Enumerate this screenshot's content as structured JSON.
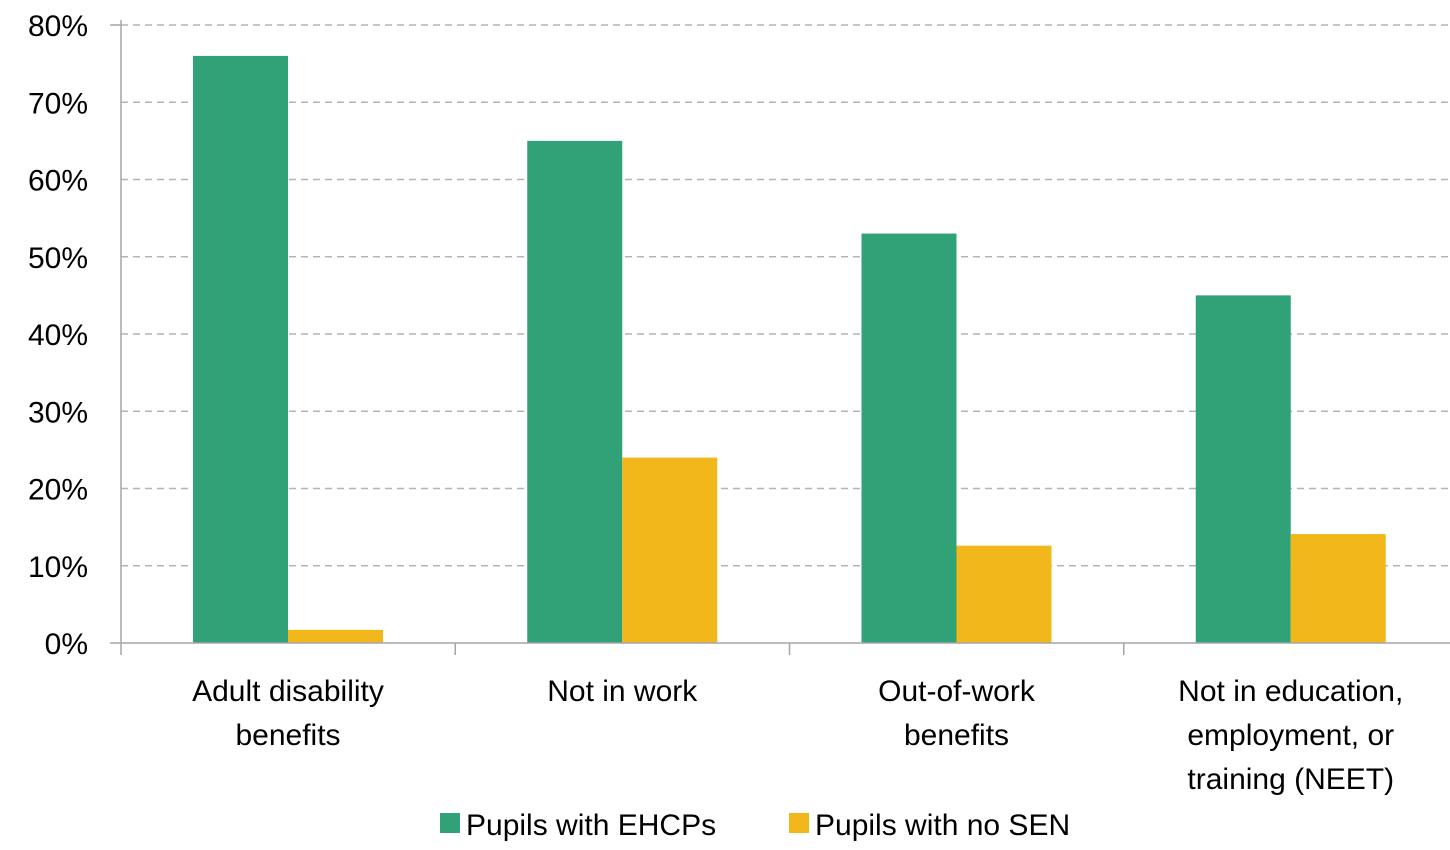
{
  "chart_data": {
    "type": "bar",
    "categories": [
      [
        "Adult disability",
        "benefits"
      ],
      [
        "Not in work"
      ],
      [
        "Out-of-work",
        "benefits"
      ],
      [
        "Not in education,",
        "employment, or",
        "training (NEET)"
      ]
    ],
    "series": [
      {
        "name": "Pupils with EHCPs",
        "color": "#31a178",
        "values": [
          76,
          65,
          53,
          45
        ]
      },
      {
        "name": "Pupils with no SEN",
        "color": "#f2b81b",
        "values": [
          1.7,
          24,
          12.6,
          14.1
        ]
      }
    ],
    "ylim": [
      0,
      80
    ],
    "yticks": [
      0,
      10,
      20,
      30,
      40,
      50,
      60,
      70,
      80
    ],
    "ytick_format": "percent",
    "grid": true,
    "legend": "bottom-center"
  }
}
